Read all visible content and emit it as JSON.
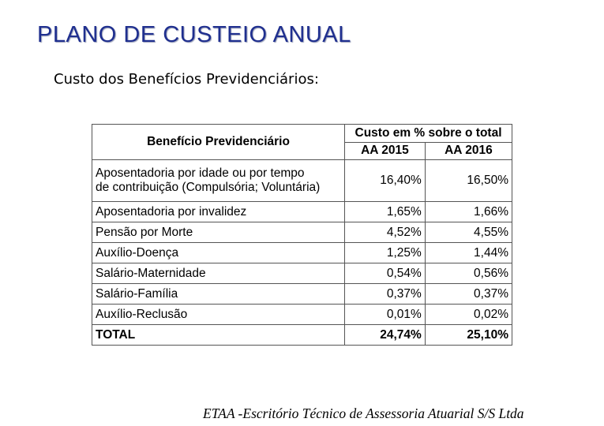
{
  "header": {
    "title": "PLANO DE CUSTEIO ANUAL",
    "subtitle": "Custo dos Benefícios Previdenciários:"
  },
  "table": {
    "col_benefit": "Benefício Previdenciário",
    "col_group": "Custo em % sobre o total",
    "col_year1": "AA 2015",
    "col_year2": "AA 2016",
    "rows": [
      {
        "label_line1": "Aposentadoria por idade ou por tempo",
        "label_line2": "de contribuição (Compulsória; Voluntária)",
        "v2015": "16,40%",
        "v2016": "16,50%"
      },
      {
        "label": "Aposentadoria por invalidez",
        "v2015": "1,65%",
        "v2016": "1,66%"
      },
      {
        "label": "Pensão por Morte",
        "v2015": "4,52%",
        "v2016": "4,55%"
      },
      {
        "label": "Auxílio-Doença",
        "v2015": "1,25%",
        "v2016": "1,44%"
      },
      {
        "label": "Salário-Maternidade",
        "v2015": "0,54%",
        "v2016": "0,56%"
      },
      {
        "label": "Salário-Família",
        "v2015": "0,37%",
        "v2016": "0,37%"
      },
      {
        "label": "Auxílio-Reclusão",
        "v2015": "0,01%",
        "v2016": "0,02%"
      }
    ],
    "total": {
      "label": "TOTAL",
      "v2015": "24,74%",
      "v2016": "25,10%"
    }
  },
  "footer": {
    "text": "ETAA -Escritório Técnico de Assessoria Atuarial S/S Ltda"
  }
}
